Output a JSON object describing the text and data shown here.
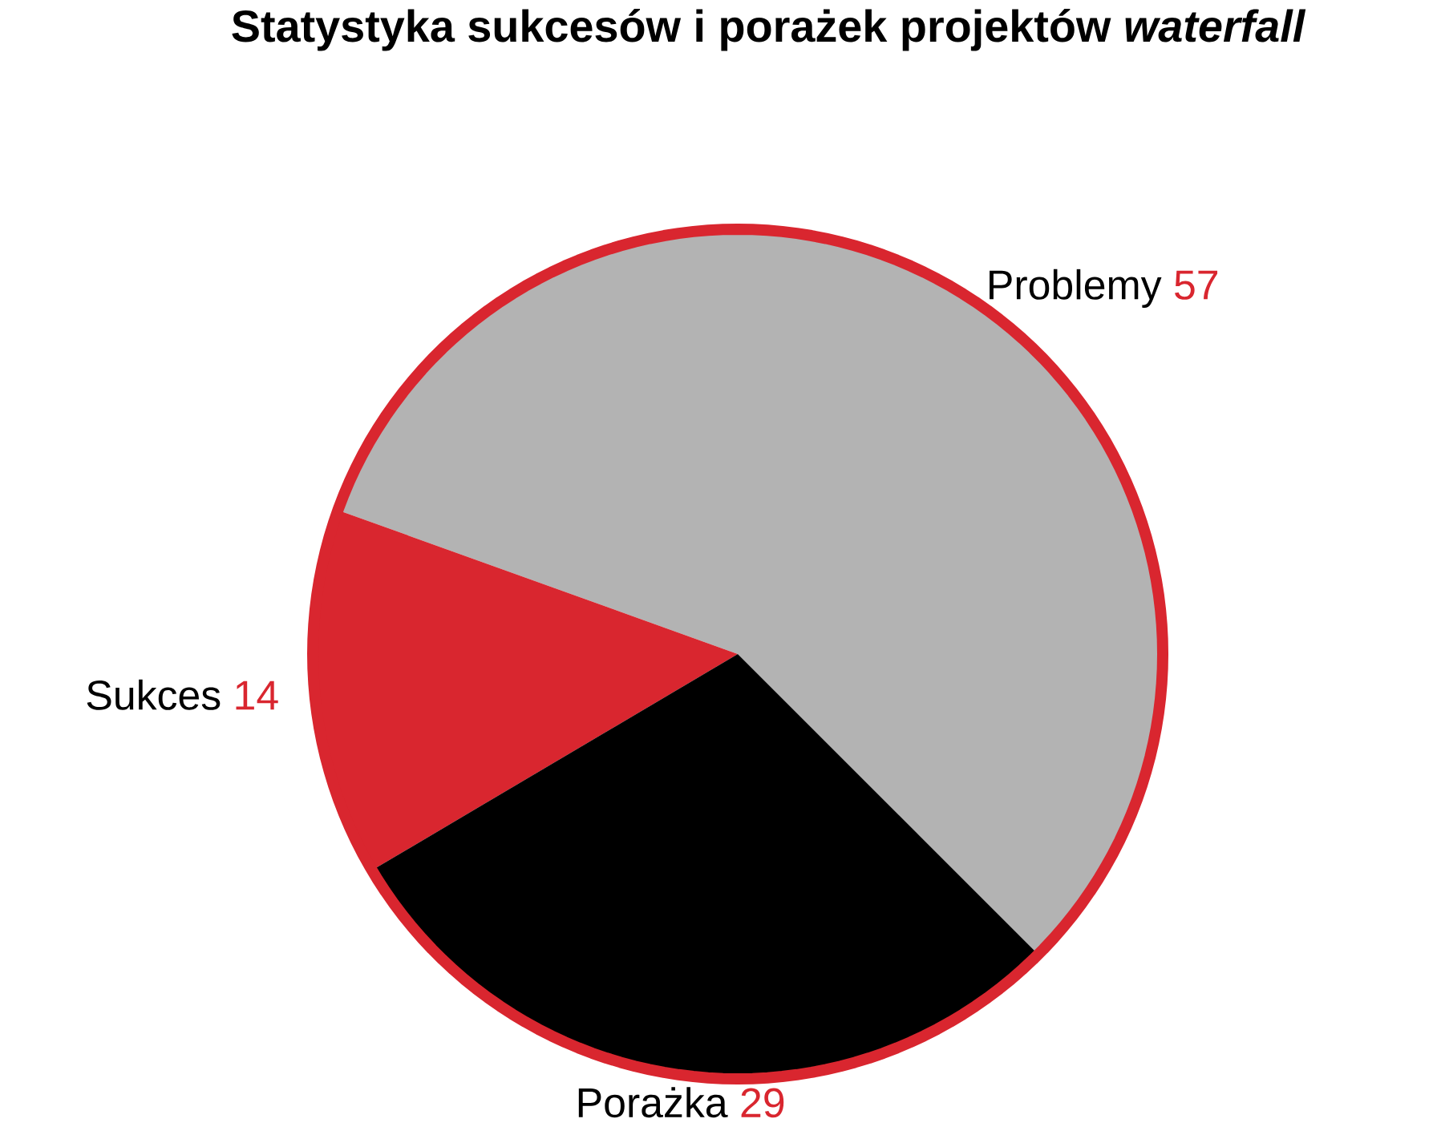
{
  "chart_data": {
    "type": "pie",
    "title": "Statystyka sukcesów i porażek projektów *waterfall*",
    "categories": [
      "Problemy",
      "Sukces",
      "Porażka"
    ],
    "values": [
      57,
      14,
      29
    ],
    "colors": [
      "#b3b3b3",
      "#d9262f",
      "#000000"
    ],
    "data_labels": true
  }
}
